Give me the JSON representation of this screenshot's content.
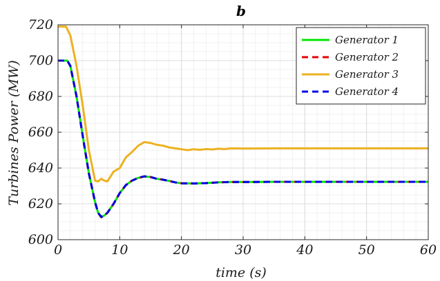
{
  "chart_data": {
    "type": "line",
    "title": "b",
    "xlabel": "time (s)",
    "ylabel": "Turbines Power (MW)",
    "xlim": [
      0,
      60
    ],
    "ylim": [
      600,
      720
    ],
    "xticks": [
      0,
      10,
      20,
      30,
      40,
      50,
      60
    ],
    "yticks": [
      600,
      620,
      640,
      660,
      680,
      700,
      720
    ],
    "grid": true,
    "minor_grid": true,
    "legend_position": "top-right",
    "series": [
      {
        "name": "Generator 1",
        "color": "#00e600",
        "dash": "solid",
        "points": [
          [
            0,
            700
          ],
          [
            1.5,
            700
          ],
          [
            2,
            697
          ],
          [
            3,
            680
          ],
          [
            4,
            658
          ],
          [
            5,
            637
          ],
          [
            6,
            621
          ],
          [
            6.5,
            615
          ],
          [
            7,
            612.5
          ],
          [
            7.5,
            613.5
          ],
          [
            8,
            615
          ],
          [
            9,
            620
          ],
          [
            10,
            626
          ],
          [
            11,
            630.5
          ],
          [
            12,
            633
          ],
          [
            13,
            634.5
          ],
          [
            14,
            635.3
          ],
          [
            15,
            635
          ],
          [
            16,
            634
          ],
          [
            17,
            633.5
          ],
          [
            18,
            632.8
          ],
          [
            19,
            632
          ],
          [
            20,
            631.5
          ],
          [
            22,
            631.4
          ],
          [
            24,
            631.6
          ],
          [
            26,
            632
          ],
          [
            28,
            632.2
          ],
          [
            30,
            632.2
          ],
          [
            35,
            632.3
          ],
          [
            40,
            632.3
          ],
          [
            50,
            632.3
          ],
          [
            60,
            632.3
          ]
        ]
      },
      {
        "name": "Generator 2",
        "color": "#e60000",
        "dash": "dashed",
        "points": [
          [
            0,
            700
          ],
          [
            1.5,
            700
          ],
          [
            2,
            697
          ],
          [
            3,
            680
          ],
          [
            4,
            658
          ],
          [
            5,
            637
          ],
          [
            6,
            621
          ],
          [
            6.5,
            615
          ],
          [
            7,
            612.5
          ],
          [
            7.5,
            613.5
          ],
          [
            8,
            615
          ],
          [
            9,
            620
          ],
          [
            10,
            626
          ],
          [
            11,
            630.5
          ],
          [
            12,
            633
          ],
          [
            13,
            634.5
          ],
          [
            14,
            635.3
          ],
          [
            15,
            635
          ],
          [
            16,
            634
          ],
          [
            17,
            633.5
          ],
          [
            18,
            632.8
          ],
          [
            19,
            632
          ],
          [
            20,
            631.5
          ],
          [
            22,
            631.4
          ],
          [
            24,
            631.6
          ],
          [
            26,
            632
          ],
          [
            28,
            632.2
          ],
          [
            30,
            632.2
          ],
          [
            35,
            632.3
          ],
          [
            40,
            632.3
          ],
          [
            50,
            632.3
          ],
          [
            60,
            632.3
          ]
        ]
      },
      {
        "name": "Generator 3",
        "color": "#edb120",
        "dash": "solid",
        "points": [
          [
            0,
            719
          ],
          [
            1.3,
            719
          ],
          [
            2,
            714
          ],
          [
            3,
            697
          ],
          [
            4,
            675
          ],
          [
            5,
            650
          ],
          [
            6,
            633
          ],
          [
            6.5,
            632.5
          ],
          [
            7,
            634
          ],
          [
            7.5,
            633
          ],
          [
            8,
            632.5
          ],
          [
            9,
            638
          ],
          [
            10,
            640
          ],
          [
            11,
            646
          ],
          [
            12,
            649
          ],
          [
            13,
            652.5
          ],
          [
            14,
            654.5
          ],
          [
            15,
            654
          ],
          [
            16,
            653
          ],
          [
            17,
            652.5
          ],
          [
            18,
            651.5
          ],
          [
            19,
            651
          ],
          [
            20,
            650.5
          ],
          [
            21,
            650
          ],
          [
            22,
            650.5
          ],
          [
            23,
            650.2
          ],
          [
            24,
            650.6
          ],
          [
            25,
            650.4
          ],
          [
            26,
            650.8
          ],
          [
            27,
            650.6
          ],
          [
            28,
            651
          ],
          [
            30,
            650.9
          ],
          [
            35,
            651
          ],
          [
            40,
            651
          ],
          [
            50,
            651
          ],
          [
            60,
            651
          ]
        ]
      },
      {
        "name": "Generator 4",
        "color": "#0000e6",
        "dash": "dashed",
        "points": [
          [
            0,
            700
          ],
          [
            1.5,
            700
          ],
          [
            2,
            697
          ],
          [
            3,
            680
          ],
          [
            4,
            658
          ],
          [
            5,
            637
          ],
          [
            6,
            621
          ],
          [
            6.5,
            615
          ],
          [
            7,
            612.8
          ],
          [
            7.5,
            613.6
          ],
          [
            8,
            615
          ],
          [
            9,
            620
          ],
          [
            10,
            626
          ],
          [
            11,
            630.5
          ],
          [
            12,
            633
          ],
          [
            13,
            634.5
          ],
          [
            14,
            635.4
          ],
          [
            15,
            635
          ],
          [
            16,
            634
          ],
          [
            17,
            633.5
          ],
          [
            18,
            632.8
          ],
          [
            19,
            632
          ],
          [
            20,
            631.5
          ],
          [
            22,
            631.4
          ],
          [
            24,
            631.6
          ],
          [
            26,
            632
          ],
          [
            28,
            632.2
          ],
          [
            30,
            632.2
          ],
          [
            35,
            632.3
          ],
          [
            40,
            632.3
          ],
          [
            50,
            632.3
          ],
          [
            60,
            632.3
          ]
        ]
      }
    ]
  }
}
